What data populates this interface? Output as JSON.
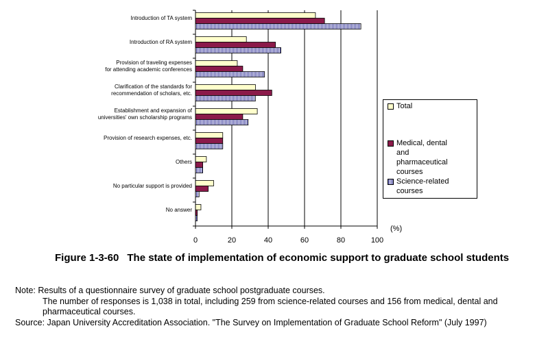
{
  "chart_data": {
    "type": "bar",
    "orientation": "horizontal",
    "categories": [
      "Introduction of TA system",
      "Introduction of RA system",
      "Provision of traveling expenses\nfor attending academic conferences",
      "Clarification of the standards for\nrecommendation of scholars, etc.",
      "Establishment and expansion of\nuniversities' own scholarship programs",
      "Provision of research expenses, etc.",
      "Others",
      "No particular support is provided",
      "No answer"
    ],
    "series": [
      {
        "name": "Total",
        "values": [
          66,
          28,
          23,
          33,
          34,
          15,
          6,
          10,
          3
        ]
      },
      {
        "name": "Medical, dental and pharmaceutical courses",
        "values": [
          71,
          44,
          26,
          42,
          26,
          15,
          4,
          7,
          1
        ]
      },
      {
        "name": "Science-related courses",
        "values": [
          91,
          47,
          38,
          33,
          29,
          15,
          4,
          2,
          1
        ]
      }
    ],
    "xlim": [
      0,
      100
    ],
    "xticks": [
      0,
      20,
      40,
      60,
      80,
      100
    ],
    "unit": "(%)",
    "grid": "vertical",
    "legend_position": "right",
    "colors": {
      "Total": "#ffffcc",
      "Medical, dental and pharmaceutical courses": "#8b1a4a",
      "Science-related courses": "#5555aa"
    }
  },
  "legend": {
    "total": "Total",
    "medical": "Medical, dental\nand\npharmaceutical\ncourses",
    "science": "Science-related\ncourses"
  },
  "caption": {
    "number": "Figure 1-3-60",
    "title": "The state of implementation of economic support to graduate school students"
  },
  "notes": {
    "line1": "Note: Results of a questionnaire survey of graduate school postgraduate courses.",
    "line2": "The number of responses is 1,038 in total, including 259 from science-related courses and 156 from medical, dental and pharmaceutical courses.",
    "source": "Source: Japan University Accreditation Association. \"The Survey on Implementation of Graduate School Reform\" (July 1997)"
  }
}
